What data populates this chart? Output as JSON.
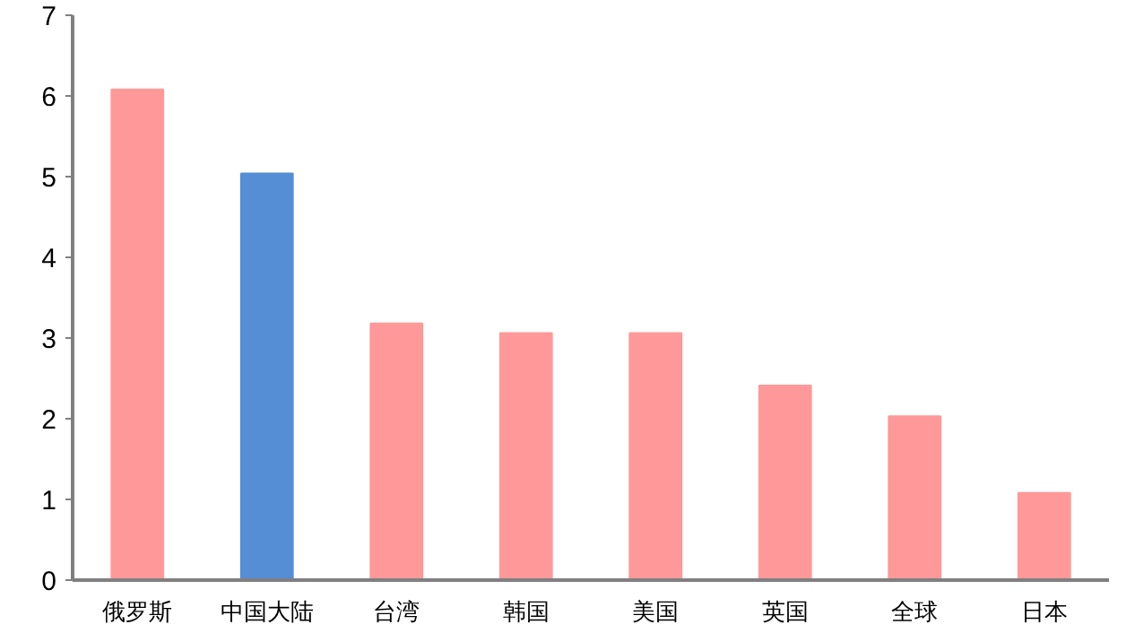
{
  "chart_data": {
    "type": "bar",
    "categories": [
      "俄罗斯",
      "中国大陆",
      "台湾",
      "韩国",
      "美国",
      "英国",
      "全球",
      "日本"
    ],
    "values": [
      6.08,
      5.04,
      3.18,
      3.06,
      3.06,
      2.41,
      2.03,
      1.08
    ],
    "colors": [
      "#ff9999",
      "#558ed5",
      "#ff9999",
      "#ff9999",
      "#ff9999",
      "#ff9999",
      "#ff9999",
      "#ff9999"
    ],
    "ylim": [
      0,
      7
    ],
    "yticks": [
      0,
      1,
      2,
      3,
      4,
      5,
      6,
      7
    ],
    "grid": false
  }
}
